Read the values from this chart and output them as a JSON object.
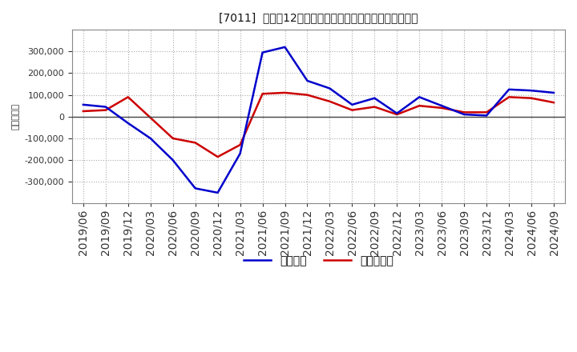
{
  "title": "[7011]  利益の12か月移動合計の対前年同期増減額の推移",
  "ylabel": "（百万円）",
  "x_labels": [
    "2019/06",
    "2019/09",
    "2019/12",
    "2020/03",
    "2020/06",
    "2020/09",
    "2020/12",
    "2021/03",
    "2021/06",
    "2021/09",
    "2021/12",
    "2022/03",
    "2022/06",
    "2022/09",
    "2022/12",
    "2023/03",
    "2023/06",
    "2023/09",
    "2023/12",
    "2024/03",
    "2024/06",
    "2024/09"
  ],
  "keijo_rieki": [
    55000,
    45000,
    -30000,
    -100000,
    -200000,
    -330000,
    -350000,
    -170000,
    295000,
    320000,
    165000,
    130000,
    55000,
    85000,
    15000,
    90000,
    50000,
    10000,
    5000,
    125000,
    120000,
    110000
  ],
  "tokki_junrieki": [
    25000,
    30000,
    90000,
    -5000,
    -100000,
    -120000,
    -185000,
    -130000,
    105000,
    110000,
    100000,
    70000,
    30000,
    45000,
    10000,
    50000,
    40000,
    20000,
    20000,
    90000,
    85000,
    65000
  ],
  "line_color_keijo": "#0000cc",
  "line_color_tokki": "#cc0000",
  "legend_keijo": "経常利益",
  "legend_tokki": "当期純利益",
  "ylim": [
    -400000,
    400000
  ],
  "yticks": [
    -300000,
    -200000,
    -100000,
    0,
    100000,
    200000,
    300000
  ],
  "background_color": "#ffffff",
  "grid_color": "#aaaaaa",
  "title_fontsize": 12,
  "axis_fontsize": 8,
  "legend_fontsize": 10
}
